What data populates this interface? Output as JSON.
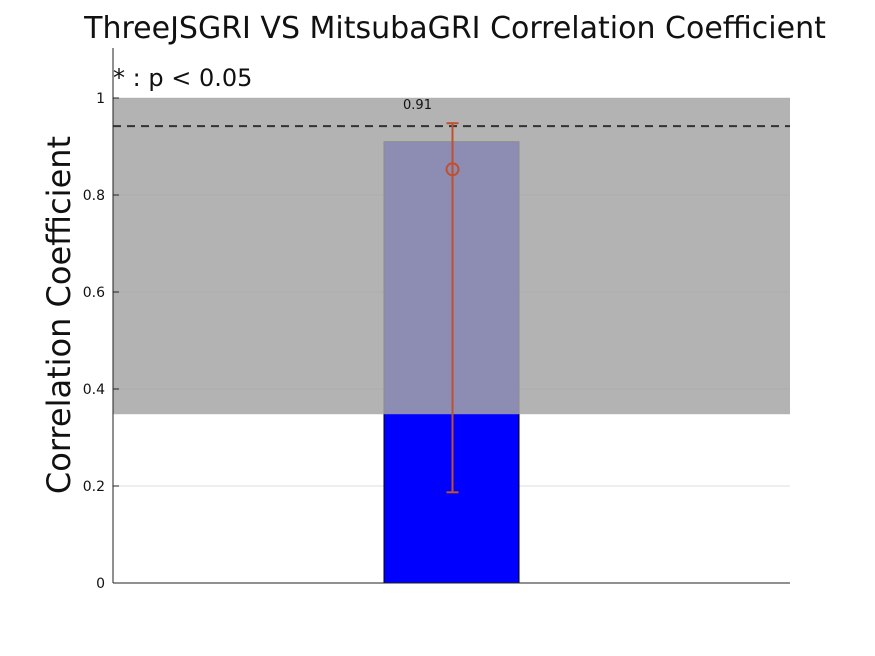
{
  "chart_data": {
    "type": "bar",
    "title": "ThreeJSGRI VS MitsubaGRI Correlation Coefficient",
    "annotation": "* : p < 0.05",
    "ylabel": "Correlation Coefficient",
    "xlabel": "",
    "ylim": [
      0,
      1
    ],
    "yticks": [
      0,
      0.2,
      0.4,
      0.6,
      0.8,
      1
    ],
    "ytick_labels": [
      "0",
      "0.2",
      "0.4",
      "0.6",
      "0.8",
      "1"
    ],
    "grid": true,
    "categories": [
      ""
    ],
    "values": [
      0.91
    ],
    "data_labels": [
      "0.91"
    ],
    "bar_color": "#0000ff",
    "shaded_band": {
      "from": 0.348,
      "to": 1.0,
      "color": "#a6a6a6"
    },
    "reference_line": {
      "y": 0.942,
      "style": "dashed",
      "color": "#333333"
    },
    "error_bar": {
      "center": 0.853,
      "low": 0.187,
      "high": 0.948,
      "color": "#c0502e"
    }
  }
}
